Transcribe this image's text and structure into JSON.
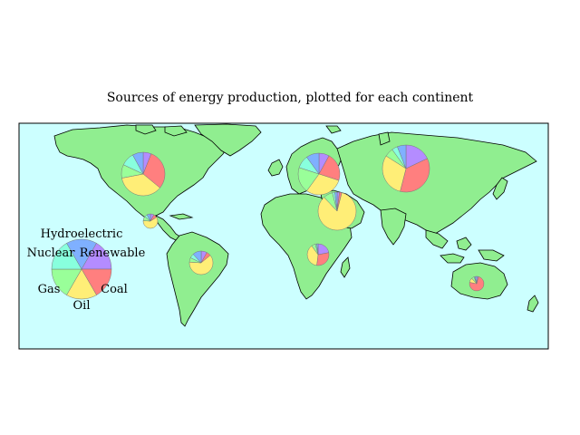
{
  "title": "Sources of energy production, plotted for each continent",
  "colors": {
    "ocean": "#ccffff",
    "land": "#90ee90",
    "coast": "#000000",
    "Hydroelectric": "#7fb0ff",
    "Renewable": "#b48cff",
    "Coal": "#ff7f7f",
    "Oil": "#ffee77",
    "Gas": "#99ff99",
    "Nuclear": "#88ffdd"
  },
  "legend": {
    "labels": [
      "Hydroelectric",
      "Renewable",
      "Coal",
      "Oil",
      "Gas",
      "Nuclear"
    ]
  },
  "chart_data": {
    "type": "pie",
    "title": "Sources of energy production, plotted for each continent",
    "categories": [
      "Renewable",
      "Coal",
      "Oil",
      "Gas",
      "Nuclear",
      "Hydroelectric"
    ],
    "pies": [
      {
        "location": "North America",
        "values": [
          6,
          30,
          36,
          10,
          10,
          8
        ]
      },
      {
        "location": "Central America",
        "values": [
          8,
          8,
          60,
          10,
          6,
          8
        ]
      },
      {
        "location": "South America",
        "values": [
          8,
          6,
          62,
          6,
          6,
          12
        ]
      },
      {
        "location": "Europe",
        "values": [
          8,
          22,
          30,
          20,
          10,
          10
        ]
      },
      {
        "location": "Middle East",
        "values": [
          2,
          2,
          84,
          8,
          2,
          2
        ]
      },
      {
        "location": "Africa",
        "values": [
          22,
          30,
          38,
          6,
          2,
          2
        ]
      },
      {
        "location": "Asia",
        "values": [
          18,
          36,
          30,
          6,
          4,
          6
        ]
      },
      {
        "location": "Oceania",
        "values": [
          4,
          74,
          10,
          6,
          2,
          4
        ]
      }
    ]
  }
}
